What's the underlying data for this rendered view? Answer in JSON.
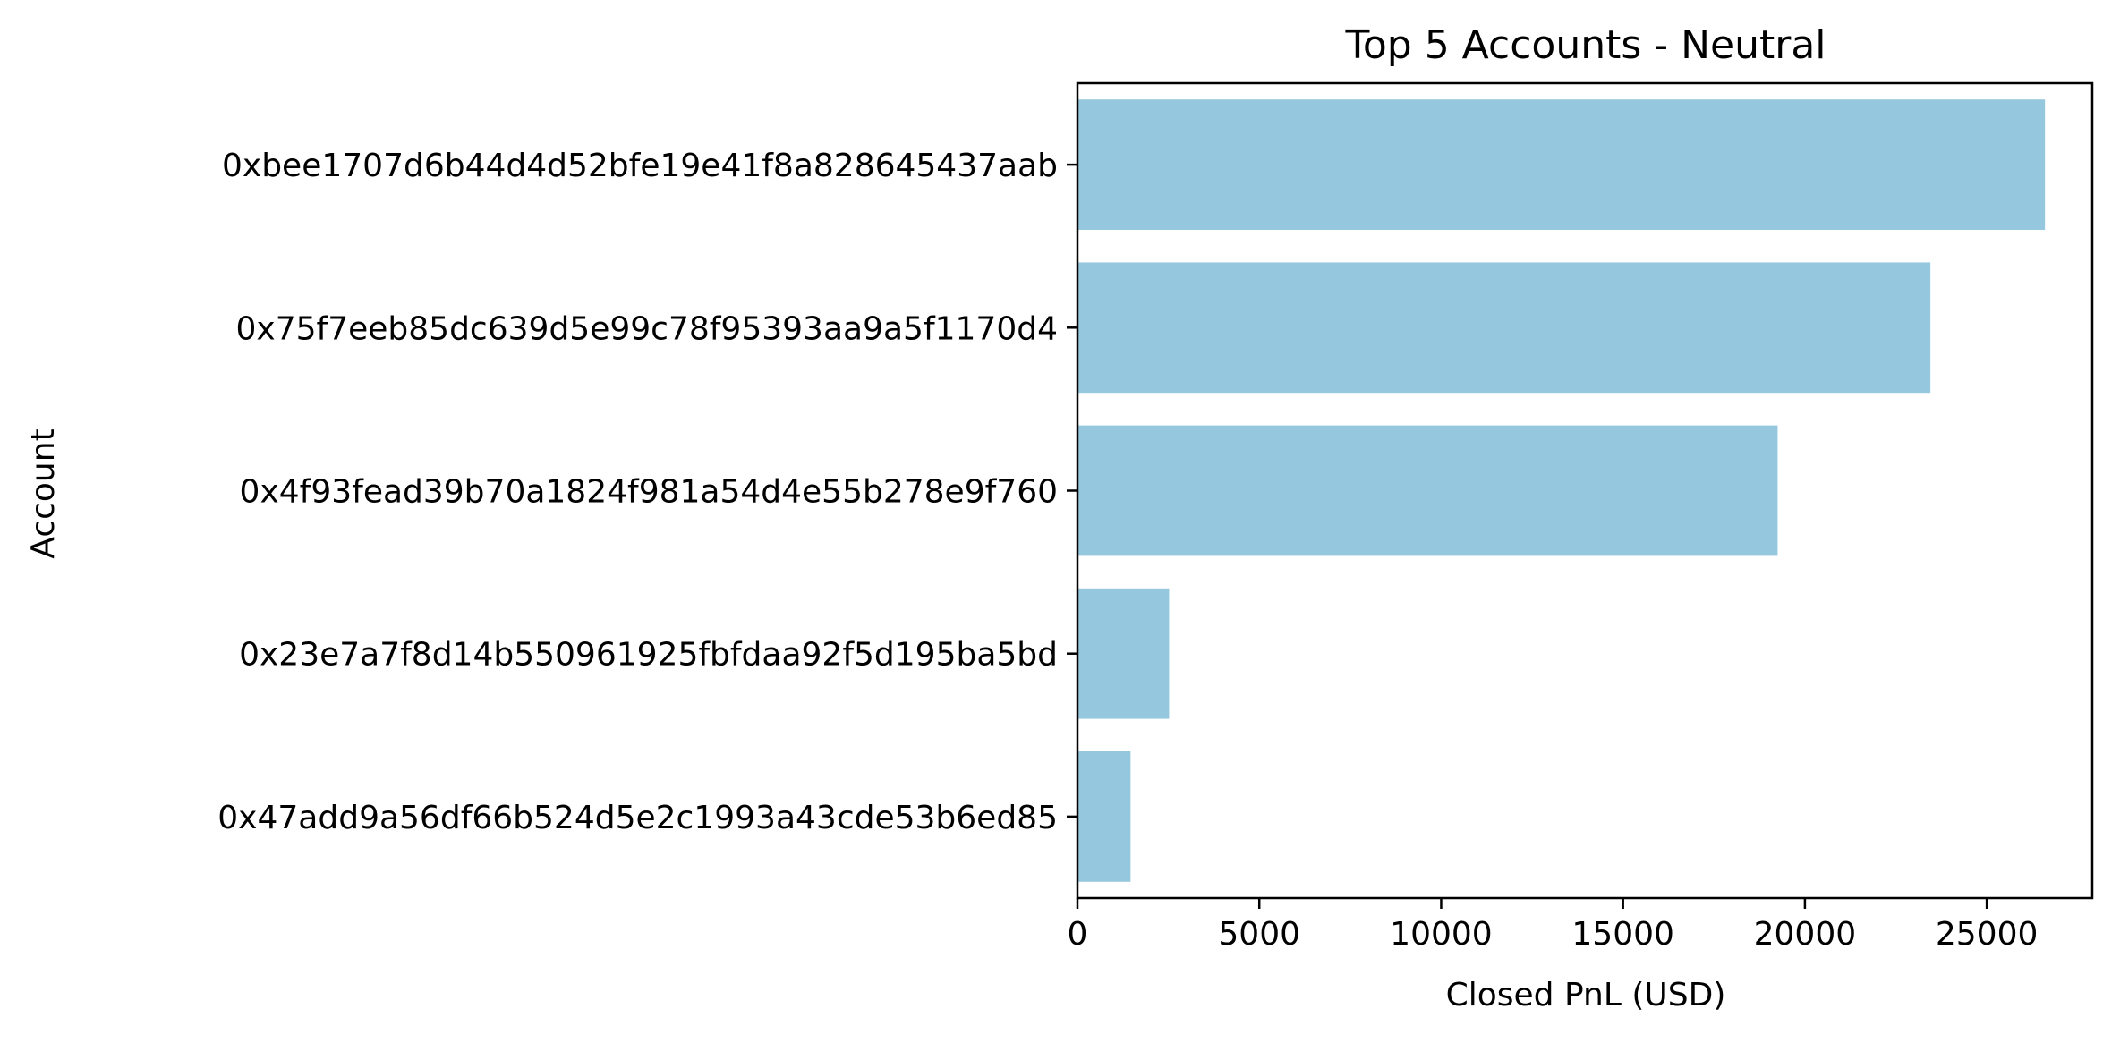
{
  "chart_data": {
    "type": "bar",
    "orientation": "horizontal",
    "title": "Top 5 Accounts - Neutral",
    "xlabel": "Closed PnL (USD)",
    "ylabel": "Account",
    "categories": [
      "0xbee1707d6b44d4d52bfe19e41f8a828645437aab",
      "0x75f7eeb85dc639d5e99c78f95393aa9a5f1170d4",
      "0x4f93fead39b70a1824f981a54d4e55b278e9f760",
      "0x23e7a7f8d14b550961925fbfdaa92f5d195ba5bd",
      "0x47add9a56df66b524d5e2c1993a43cde53b6ed85"
    ],
    "values": [
      26600,
      23450,
      19250,
      2520,
      1460
    ],
    "xlim": [
      0,
      27900
    ],
    "xticks": [
      0,
      5000,
      10000,
      15000,
      20000,
      25000
    ],
    "grid": false,
    "bar_color": "#95c8de",
    "axis_color": "#000000"
  }
}
